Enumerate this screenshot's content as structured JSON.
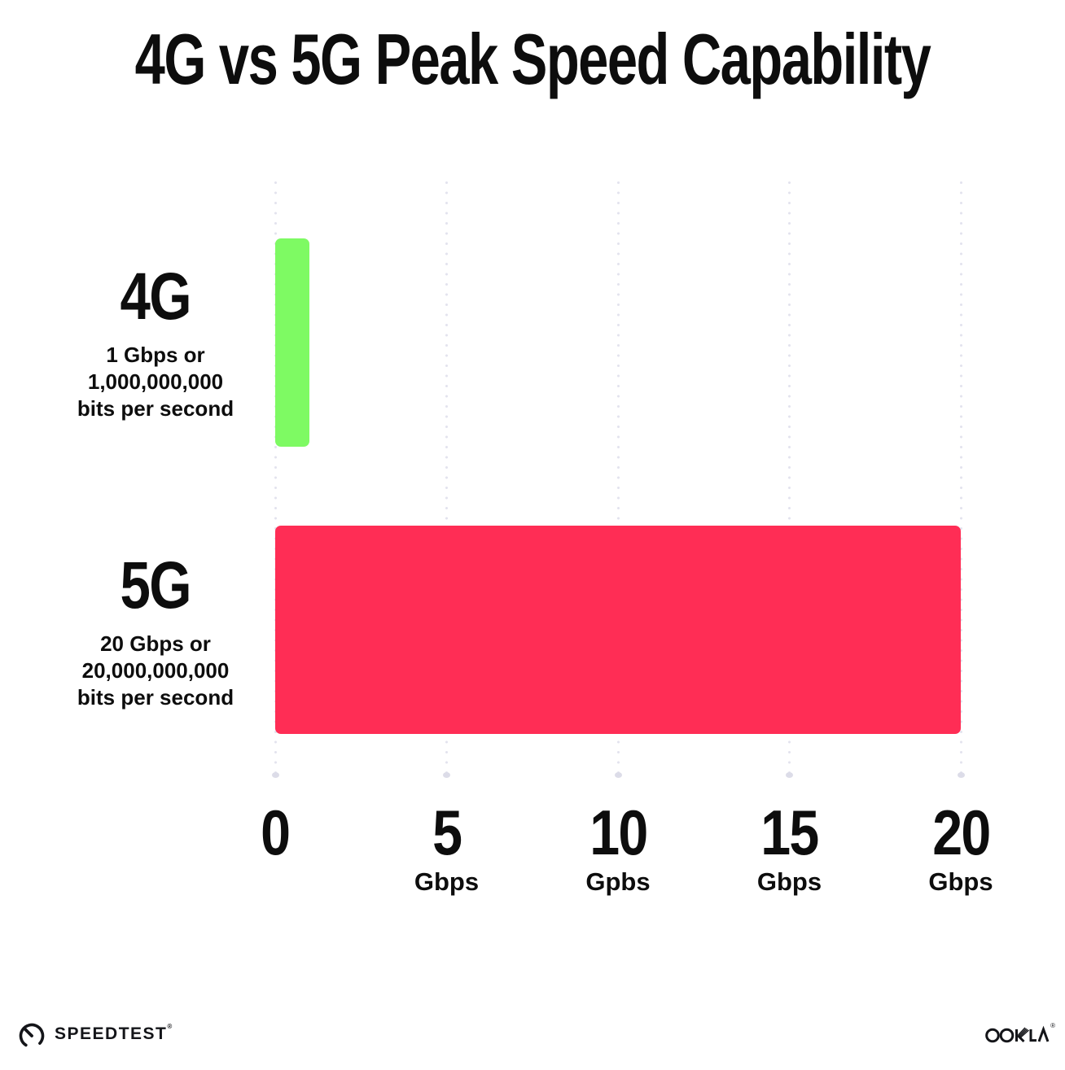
{
  "title": "4G vs 5G Peak Speed Capability",
  "rows": [
    {
      "label": "4G",
      "line1": "1 Gbps or",
      "line2": "1,000,000,000",
      "line3": "bits per second",
      "value": 1
    },
    {
      "label": "5G",
      "line1": "20 Gbps or",
      "line2": "20,000,000,000",
      "line3": "bits per second",
      "value": 20
    }
  ],
  "axis": {
    "max": 20,
    "ticks": [
      {
        "num": "0",
        "unit": ""
      },
      {
        "num": "5",
        "unit": "Gbps"
      },
      {
        "num": "10",
        "unit": "Gpbs"
      },
      {
        "num": "15",
        "unit": "Gbps"
      },
      {
        "num": "20",
        "unit": "Gbps"
      }
    ]
  },
  "footer": {
    "speedtest_label": "SPEEDTEST",
    "speedtest_mark": "®",
    "ookla_label": "OOKLA",
    "ookla_mark": "®"
  },
  "colors": {
    "bar_4g": "#7EFA63",
    "bar_5g": "#FF2D55",
    "grid_dot": "#E3E3EE",
    "grid_dot_end": "#DCDCE8",
    "text": "#0D0D0D",
    "background": "#FFFFFF"
  },
  "chart_data": {
    "type": "bar",
    "orientation": "horizontal",
    "title": "4G vs 5G Peak Speed Capability",
    "categories": [
      "4G",
      "5G"
    ],
    "values": [
      1,
      20
    ],
    "value_unit": "Gbps",
    "category_annotations": [
      "1 Gbps or 1,000,000,000 bits per second",
      "20 Gbps or 20,000,000,000 bits per second"
    ],
    "bar_colors": [
      "#7EFA63",
      "#FF2D55"
    ],
    "xlim": [
      0,
      20
    ],
    "x_ticks": [
      0,
      5,
      10,
      15,
      20
    ],
    "x_tick_labels": [
      "0",
      "5 Gbps",
      "10 Gpbs",
      "15 Gbps",
      "20 Gbps"
    ],
    "grid": "vertical-dotted",
    "legend": "none"
  }
}
